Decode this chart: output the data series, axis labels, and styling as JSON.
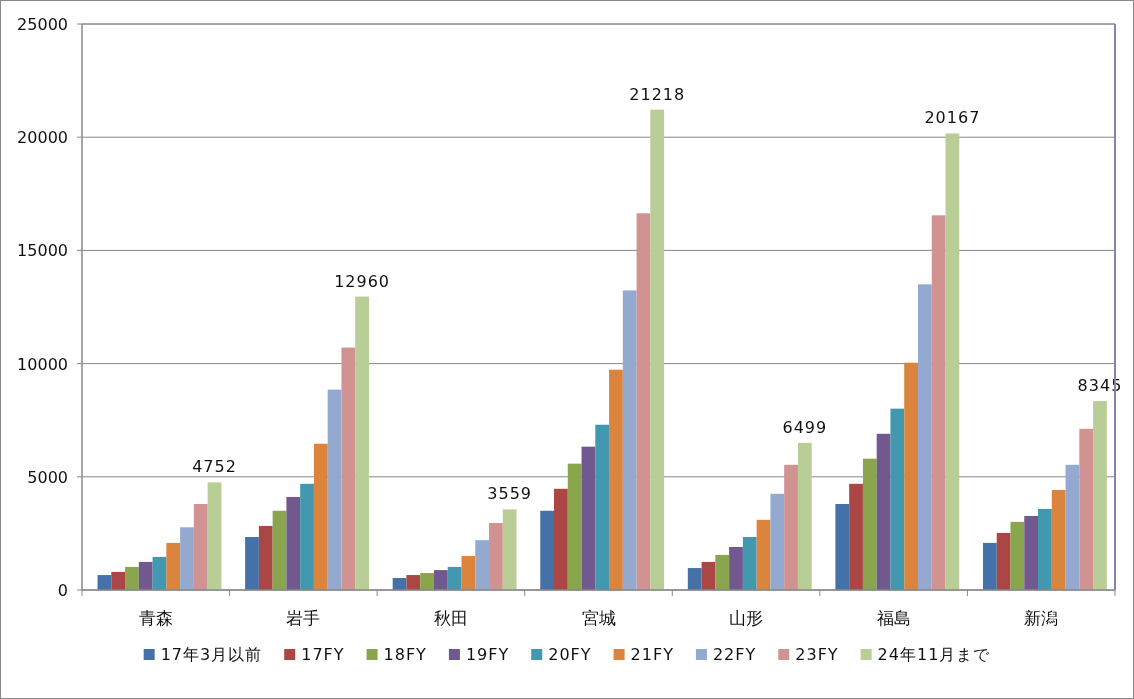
{
  "chart_data": {
    "type": "bar",
    "categories": [
      "青森",
      "岩手",
      "秋田",
      "宮城",
      "山形",
      "福島",
      "新潟"
    ],
    "series": [
      {
        "name": "17年3月以前",
        "color": "#4472a8",
        "values": [
          660,
          2340,
          530,
          3500,
          970,
          3800,
          2080
        ]
      },
      {
        "name": "17FY",
        "color": "#aa4644",
        "values": [
          800,
          2830,
          660,
          4470,
          1240,
          4690,
          2520
        ]
      },
      {
        "name": "18FY",
        "color": "#89a54e",
        "values": [
          1020,
          3500,
          750,
          5580,
          1550,
          5800,
          3010
        ]
      },
      {
        "name": "19FY",
        "color": "#71588f",
        "values": [
          1240,
          4110,
          880,
          6330,
          1900,
          6900,
          3270
        ]
      },
      {
        "name": "20FY",
        "color": "#4198af",
        "values": [
          1460,
          4690,
          1020,
          7300,
          2340,
          8010,
          3580
        ]
      },
      {
        "name": "21FY",
        "color": "#db843d",
        "values": [
          2080,
          6460,
          1500,
          9730,
          3100,
          10040,
          4420
        ]
      },
      {
        "name": "22FY",
        "color": "#93a9cf",
        "values": [
          2770,
          8850,
          2200,
          13230,
          4250,
          13500,
          5530
        ]
      },
      {
        "name": "23FY",
        "color": "#d19392",
        "values": [
          3800,
          10710,
          2960,
          16640,
          5530,
          16550,
          7120
        ]
      },
      {
        "name": "24年11月まで",
        "color": "#b9cd96",
        "values": [
          4752,
          12960,
          3559,
          21218,
          6499,
          20167,
          8345
        ],
        "value_labels": [
          "4752",
          "12960",
          "3559",
          "21218",
          "6499",
          "20167",
          "8345"
        ]
      }
    ],
    "ylim": [
      0,
      25000
    ],
    "yticks": [
      0,
      5000,
      10000,
      15000,
      20000,
      25000
    ],
    "grid": "y",
    "legend": "bottom"
  }
}
